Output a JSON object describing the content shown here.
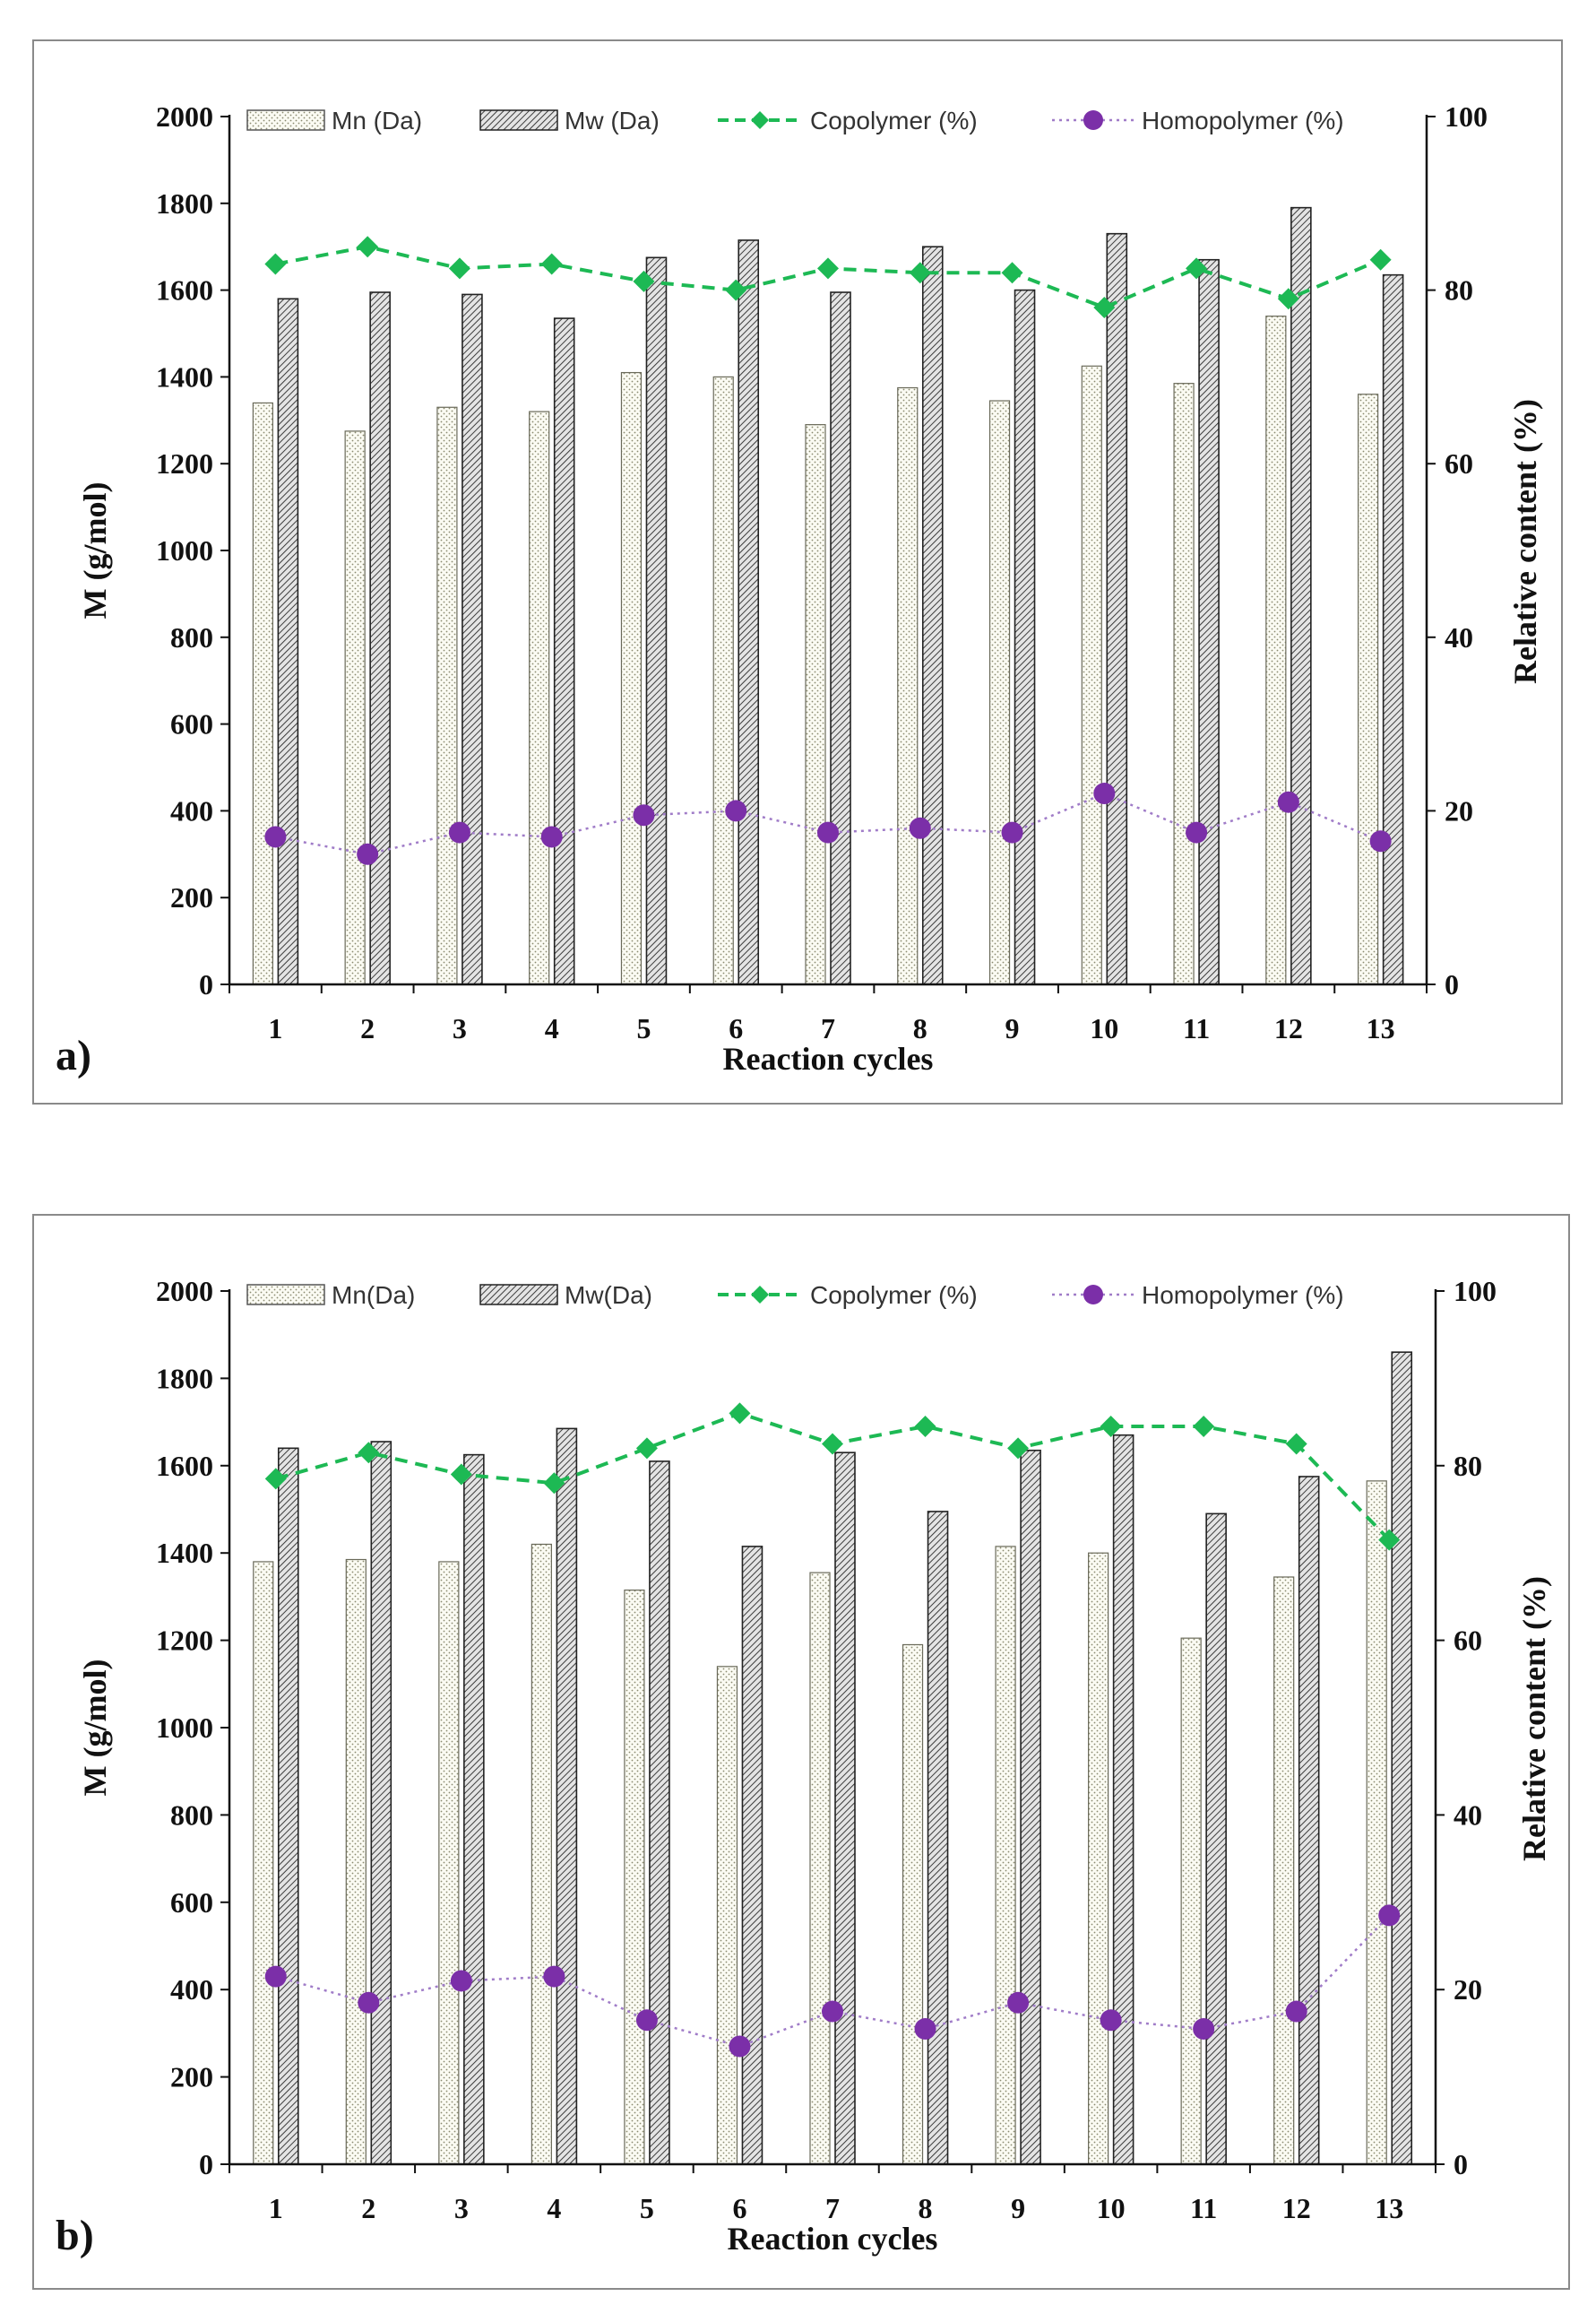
{
  "chart_data": [
    {
      "type": "bar",
      "panel_label": "a)",
      "xlabel": "Reaction cycles",
      "ylabel": "M  (g/mol)",
      "y2label": "Relative content    (%)",
      "categories": [
        "1",
        "2",
        "3",
        "4",
        "5",
        "6",
        "7",
        "8",
        "9",
        "10",
        "11",
        "12",
        "13"
      ],
      "ylim": [
        0,
        2000
      ],
      "y_ticks": [
        "0",
        "200",
        "400",
        "600",
        "800",
        "1000",
        "1200",
        "1400",
        "1600",
        "1800",
        "2000"
      ],
      "y2lim": [
        0,
        100
      ],
      "y2_ticks": [
        "0",
        "20",
        "40",
        "60",
        "80",
        "100"
      ],
      "legend": {
        "mn": "Mn (Da)",
        "mw": "Mw (Da)",
        "co": "Copolymer (%)",
        "homo": "Homopolymer (%)"
      },
      "series": [
        {
          "name": "Mn (Da)",
          "axis": "left",
          "values": [
            1340,
            1275,
            1330,
            1320,
            1410,
            1400,
            1290,
            1375,
            1345,
            1425,
            1385,
            1540,
            1360
          ]
        },
        {
          "name": "Mw (Da)",
          "axis": "left",
          "values": [
            1580,
            1595,
            1590,
            1535,
            1675,
            1715,
            1595,
            1700,
            1600,
            1730,
            1670,
            1790,
            1635
          ]
        },
        {
          "name": "Copolymer (%)",
          "axis": "right",
          "values": [
            83,
            85,
            82.5,
            83,
            81,
            80,
            82.5,
            82,
            82,
            78,
            82.5,
            79,
            83.5
          ]
        },
        {
          "name": "Homopolymer (%)",
          "axis": "right",
          "values": [
            17,
            15,
            17.5,
            17,
            19.5,
            20,
            17.5,
            18,
            17.5,
            22,
            17.5,
            21,
            16.5
          ]
        }
      ],
      "colors": {
        "copolymer": "#1db954",
        "homopolymer": "#7b2fa8"
      }
    },
    {
      "type": "bar",
      "panel_label": "b)",
      "xlabel": "Reaction cycles",
      "ylabel": "M  (g/mol)",
      "y2label": "Relative content    (%)",
      "categories": [
        "1",
        "2",
        "3",
        "4",
        "5",
        "6",
        "7",
        "8",
        "9",
        "10",
        "11",
        "12",
        "13"
      ],
      "ylim": [
        0,
        2000
      ],
      "y_ticks": [
        "0",
        "200",
        "400",
        "600",
        "800",
        "1000",
        "1200",
        "1400",
        "1600",
        "1800",
        "2000"
      ],
      "y2lim": [
        0,
        100
      ],
      "y2_ticks": [
        "0",
        "20",
        "40",
        "60",
        "80",
        "100"
      ],
      "legend": {
        "mn": "Mn(Da)",
        "mw": "Mw(Da)",
        "co": "Copolymer (%)",
        "homo": "Homopolymer (%)"
      },
      "series": [
        {
          "name": "Mn (Da)",
          "axis": "left",
          "values": [
            1380,
            1385,
            1380,
            1420,
            1315,
            1140,
            1355,
            1190,
            1415,
            1400,
            1205,
            1345,
            1565
          ]
        },
        {
          "name": "Mw (Da)",
          "axis": "left",
          "values": [
            1640,
            1655,
            1625,
            1685,
            1610,
            1415,
            1630,
            1495,
            1635,
            1670,
            1490,
            1575,
            1860
          ]
        },
        {
          "name": "Copolymer (%)",
          "axis": "right",
          "values": [
            78.5,
            81.5,
            79,
            78,
            82,
            86,
            82.5,
            84.5,
            82,
            84.5,
            84.5,
            82.5,
            71.5
          ]
        },
        {
          "name": "Homopolymer (%)",
          "axis": "right",
          "values": [
            21.5,
            18.5,
            21,
            21.5,
            16.5,
            13.5,
            17.5,
            15.5,
            18.5,
            16.5,
            15.5,
            17.5,
            28.5
          ]
        }
      ],
      "colors": {
        "copolymer": "#1db954",
        "homopolymer": "#7b2fa8"
      }
    }
  ]
}
